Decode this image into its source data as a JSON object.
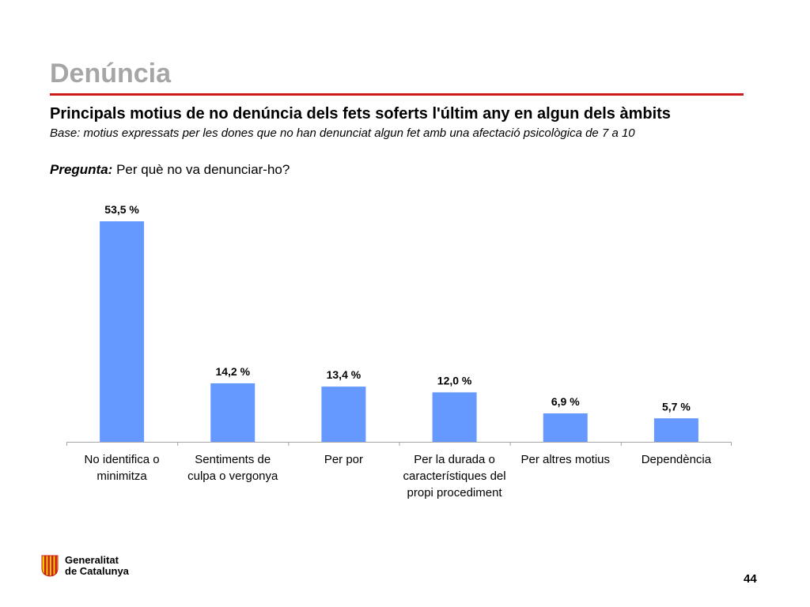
{
  "slide": {
    "section_title": "Denúncia",
    "subtitle": "Principals motius de no denúncia dels fets soferts l'últim any en algun dels àmbits",
    "base": "Base: motius expressats per les  dones que no han denunciat algun fet amb una afectació psicològica de 7 a 10",
    "question_label": "Pregunta:",
    "question_text": " Per què no va denunciar-ho?",
    "page_number": "44"
  },
  "footer": {
    "logo_line1": "Generalitat",
    "logo_line2": "de Catalunya",
    "logo_stripe_color": "#cc1b1b"
  },
  "colors": {
    "bar": "#6699ff",
    "rule": "#cc1b1b",
    "section_title": "#a6a6a6"
  },
  "chart_data": {
    "type": "bar",
    "categories": [
      [
        "No identifica o",
        "minimitza"
      ],
      [
        "Sentiments de",
        "culpa o vergonya"
      ],
      [
        "Per por"
      ],
      [
        "Per la durada o",
        "característiques del",
        "propi procediment"
      ],
      [
        "Per altres motius"
      ],
      [
        "Dependència"
      ]
    ],
    "values": [
      53.5,
      14.2,
      13.4,
      12.0,
      6.9,
      5.7
    ],
    "data_labels": [
      "53,5 %",
      "14,2 %",
      "13,4 %",
      "12,0 %",
      "6,9 %",
      "5,7 %"
    ],
    "ylim": [
      0,
      53.5
    ],
    "grid": false,
    "legend": "none"
  }
}
